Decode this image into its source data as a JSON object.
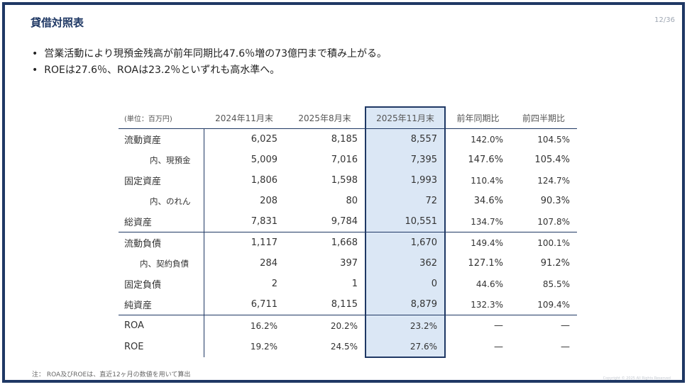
{
  "slide": {
    "title": "貸借対照表",
    "page_number": "12/36",
    "bullets": [
      "営業活動により現預金残高が前年同期比47.6％増の73億円まで積み上がる。",
      "ROEは27.6％、ROAは23.2％といずれも高水準へ。"
    ],
    "note": "注： ROA及びROEは、直近12ヶ月の数値を用いて算出",
    "watermark": "Copyright © 2025 All Rights Reserved"
  },
  "table": {
    "headers": [
      "(単位：百万円)",
      "2024年11月末",
      "2025年8月末",
      "2025年11月末",
      "前年同期比",
      "前四半期比"
    ],
    "rows": [
      {
        "label": "流動資産",
        "v1": "6,025",
        "v2": "8,185",
        "v3": "8,557",
        "yoy": "142.0%",
        "qoq": "104.5%"
      },
      {
        "label": "内、現預金",
        "v1": "5,009",
        "v2": "7,016",
        "v3": "7,395",
        "yoy": "147.6%",
        "qoq": "105.4%"
      },
      {
        "label": "固定資産",
        "v1": "1,806",
        "v2": "1,598",
        "v3": "1,993",
        "yoy": "110.4%",
        "qoq": "124.7%"
      },
      {
        "label": "内、のれん",
        "v1": "208",
        "v2": "80",
        "v3": "72",
        "yoy": "34.6%",
        "qoq": "90.3%"
      },
      {
        "label": "総資産",
        "v1": "7,831",
        "v2": "9,784",
        "v3": "10,551",
        "yoy": "134.7%",
        "qoq": "107.8%"
      },
      {
        "label": "流動負債",
        "v1": "1,117",
        "v2": "1,668",
        "v3": "1,670",
        "yoy": "149.4%",
        "qoq": "100.1%"
      },
      {
        "label": "内、契約負債",
        "v1": "284",
        "v2": "397",
        "v3": "362",
        "yoy": "127.1%",
        "qoq": "91.2%"
      },
      {
        "label": "固定負債",
        "v1": "2",
        "v2": "1",
        "v3": "0",
        "yoy": "44.6%",
        "qoq": "85.5%"
      },
      {
        "label": "純資産",
        "v1": "6,711",
        "v2": "8,115",
        "v3": "8,879",
        "yoy": "132.3%",
        "qoq": "109.4%"
      },
      {
        "label": "ROA",
        "v1": "16.2%",
        "v2": "20.2%",
        "v3": "23.2%",
        "yoy": "—",
        "qoq": "—"
      },
      {
        "label": "ROE",
        "v1": "19.2%",
        "v2": "24.5%",
        "v3": "27.6%",
        "yoy": "—",
        "qoq": "—"
      }
    ]
  },
  "colors": {
    "accent": "#1f3864",
    "highlight_fill": "#dbe7f5"
  }
}
